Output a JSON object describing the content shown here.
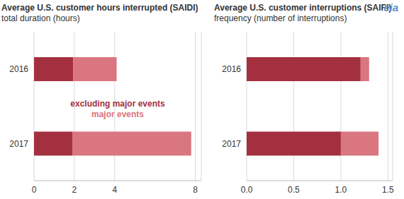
{
  "logo": "eia",
  "chart_data": [
    {
      "type": "bar",
      "orientation": "horizontal",
      "stacked": true,
      "grid": true,
      "legend": "center",
      "title": "Average U.S. customer hours interrupted (SAIDI)",
      "subtitle": "total duration (hours)",
      "categories": [
        "2016",
        "2017"
      ],
      "series": [
        {
          "name": "excluding major events",
          "color": "#a4303f",
          "values": [
            1.95,
            1.9
          ]
        },
        {
          "name": "major events",
          "color": "#d9767f",
          "values": [
            2.15,
            5.9
          ]
        }
      ],
      "xlim": [
        0,
        8.3
      ],
      "xticks": [
        0,
        2,
        4,
        8
      ]
    },
    {
      "type": "bar",
      "orientation": "horizontal",
      "stacked": true,
      "grid": true,
      "title": "Average U.S. customer interruptions (SAIFI)",
      "subtitle": "frequency (number of interruptions)",
      "categories": [
        "2016",
        "2017"
      ],
      "series": [
        {
          "name": "excluding major events",
          "color": "#a4303f",
          "values": [
            1.21,
            1.0
          ]
        },
        {
          "name": "major events",
          "color": "#d9767f",
          "values": [
            0.09,
            0.4
          ]
        }
      ],
      "xlim": [
        0,
        1.55
      ],
      "xticks": [
        {
          "value": 0,
          "label": "0.0"
        },
        0.5,
        {
          "value": 1,
          "label": "1.0"
        },
        1.5
      ]
    }
  ]
}
